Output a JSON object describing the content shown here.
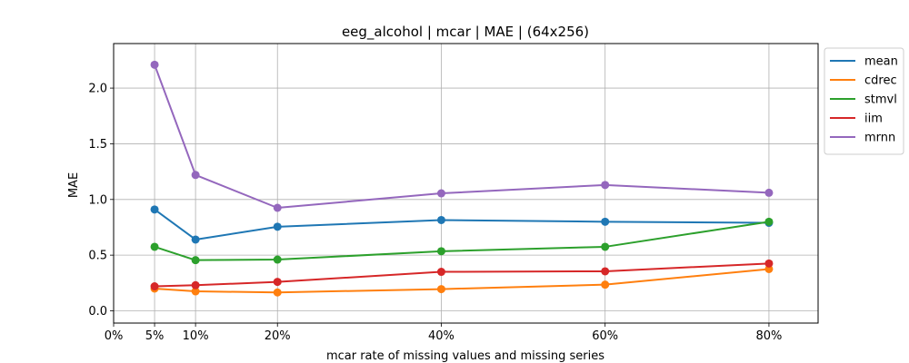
{
  "chart_data": {
    "type": "line",
    "title": "eeg_alcohol | mcar | MAE | (64x256)",
    "xlabel": "mcar rate of missing values and missing series",
    "ylabel": "MAE",
    "x": [
      5,
      10,
      20,
      40,
      60,
      80
    ],
    "xlim": [
      0,
      86
    ],
    "ylim": [
      -0.11,
      2.4
    ],
    "x_ticks": [
      0,
      5,
      10,
      20,
      40,
      60,
      80
    ],
    "x_tick_labels": [
      "0%",
      "5%",
      "10%",
      "20%",
      "40%",
      "60%",
      "80%"
    ],
    "y_ticks": [
      0.0,
      0.5,
      1.0,
      1.5,
      2.0
    ],
    "y_tick_labels": [
      "0.0",
      "0.5",
      "1.0",
      "1.5",
      "2.0"
    ],
    "grid": true,
    "legend_position": "outside-top-right",
    "series": [
      {
        "name": "mean",
        "color": "#1f77b4",
        "values": [
          0.91,
          0.64,
          0.755,
          0.815,
          0.8,
          0.79
        ]
      },
      {
        "name": "cdrec",
        "color": "#ff7f0e",
        "values": [
          0.2,
          0.175,
          0.165,
          0.195,
          0.235,
          0.375
        ]
      },
      {
        "name": "stmvl",
        "color": "#2ca02c",
        "values": [
          0.575,
          0.455,
          0.46,
          0.535,
          0.575,
          0.8
        ]
      },
      {
        "name": "iim",
        "color": "#d62728",
        "values": [
          0.22,
          0.23,
          0.26,
          0.35,
          0.355,
          0.425
        ]
      },
      {
        "name": "mrnn",
        "color": "#9467bd",
        "values": [
          2.21,
          1.22,
          0.925,
          1.055,
          1.13,
          1.06
        ]
      }
    ]
  }
}
